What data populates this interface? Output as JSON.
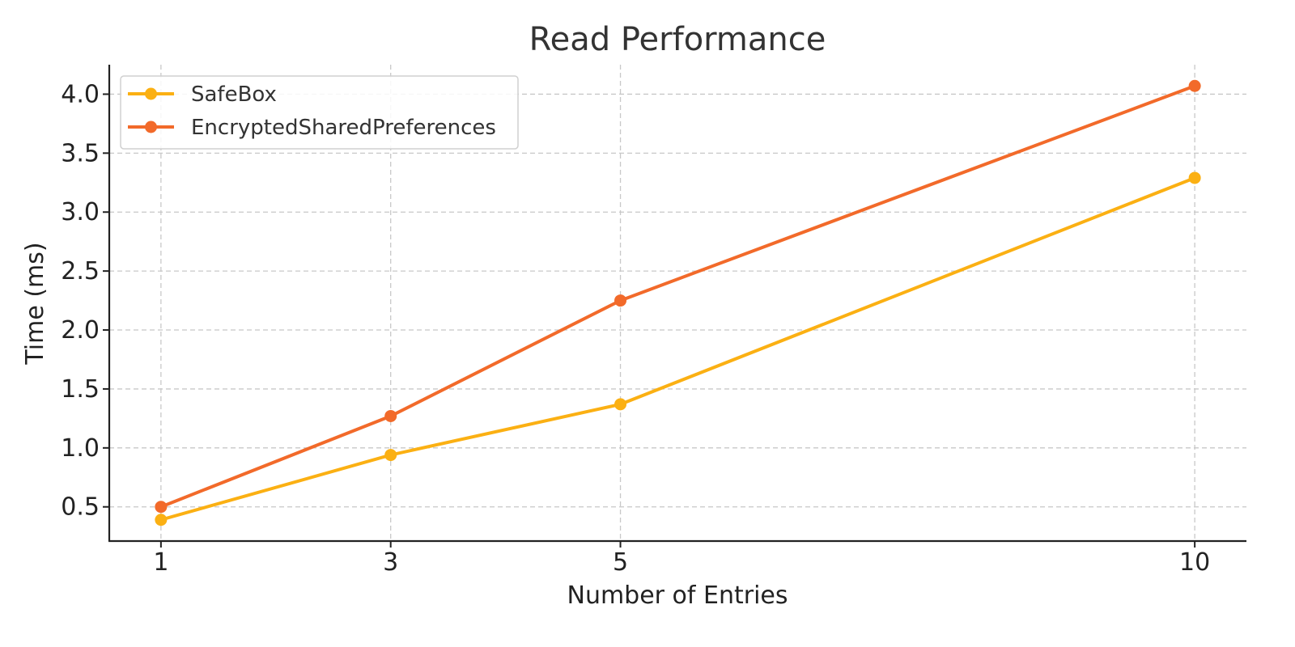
{
  "chart_data": {
    "type": "line",
    "title": "Read Performance",
    "xlabel": "Number of Entries",
    "ylabel": "Time (ms)",
    "x": [
      1,
      3,
      5,
      10
    ],
    "xticks": [
      "1",
      "3",
      "5",
      "10"
    ],
    "yticks": [
      "0.5",
      "1.0",
      "1.5",
      "2.0",
      "2.5",
      "3.0",
      "3.5",
      "4.0"
    ],
    "ytick_values": [
      0.5,
      1.0,
      1.5,
      2.0,
      2.5,
      3.0,
      3.5,
      4.0
    ],
    "xlim": [
      0.55,
      10.45
    ],
    "ylim": [
      0.21,
      4.25
    ],
    "grid": true,
    "legend_position": "top-left",
    "series": [
      {
        "name": "SafeBox",
        "color": "#fbb013",
        "values": [
          0.39,
          0.94,
          1.37,
          3.29
        ]
      },
      {
        "name": "EncryptedSharedPreferences",
        "color": "#f26a2a",
        "values": [
          0.5,
          1.27,
          2.25,
          4.07
        ]
      }
    ]
  }
}
